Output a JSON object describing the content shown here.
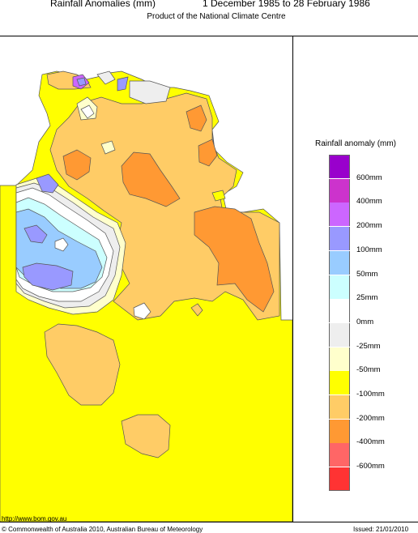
{
  "header": {
    "title": "Rainfall Anomalies (mm)",
    "period": "1 December 1985 to 28 February 1986",
    "subtitle": "Product of the National Climate Centre"
  },
  "legend": {
    "title": "Rainfall anomaly (mm)",
    "bins": [
      {
        "label": "600mm",
        "color": "#9900cc"
      },
      {
        "label": "400mm",
        "color": "#cc33cc"
      },
      {
        "label": "200mm",
        "color": "#cc66ff"
      },
      {
        "label": "100mm",
        "color": "#9999ff"
      },
      {
        "label": "50mm",
        "color": "#99ccff"
      },
      {
        "label": "25mm",
        "color": "#ccffff"
      },
      {
        "label": "0mm",
        "color": "#ffffff"
      },
      {
        "label": "-25mm",
        "color": "#eeeeee"
      },
      {
        "label": "-50mm",
        "color": "#ffffcc"
      },
      {
        "label": "-100mm",
        "color": "#ffff00"
      },
      {
        "label": "-200mm",
        "color": "#ffcc66"
      },
      {
        "label": "-400mm",
        "color": "#ff9933"
      },
      {
        "label": "-600mm",
        "color": "#ff6666"
      },
      {
        "label": "",
        "color": "#ff3333"
      }
    ]
  },
  "footer": {
    "url": "http://www.bom.gov.au",
    "copyright": "© Commonwealth of Australia 2010, Australian Bureau of Meteorology",
    "issued": "Issued: 21/01/2010"
  }
}
